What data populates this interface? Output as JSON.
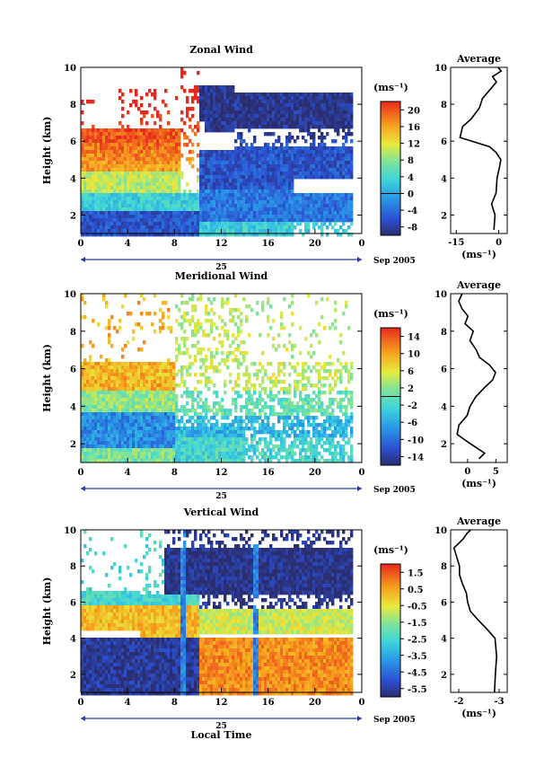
{
  "figure": {
    "xlabel": "Local Time",
    "date_label": "25",
    "month_label": "Sep 2005",
    "average_title": "Average",
    "unit": "(ms⁻¹)"
  },
  "chart_data": [
    {
      "type": "heatmap",
      "title": "Zonal Wind",
      "xlabel": "Local Time",
      "ylabel": "Height (km)",
      "xlim": [
        0,
        24
      ],
      "ylim": [
        1,
        10
      ],
      "xticks": [
        "0",
        "4",
        "8",
        "12",
        "16",
        "20",
        "0"
      ],
      "yticks": [
        "2",
        "4",
        "6",
        "8",
        "10"
      ],
      "colorbar": {
        "unit": "(ms⁻¹)",
        "ticks": [
          "20",
          "16",
          "12",
          "8",
          "4",
          "0",
          "-4",
          "-8"
        ],
        "min": -10,
        "max": 22
      },
      "avg": {
        "title": "Average",
        "xlabel": "(ms⁻¹)",
        "xticks": [
          "-15",
          "0"
        ],
        "xlim": [
          -17,
          3
        ],
        "yticks": [
          "2",
          "4",
          "6",
          "8",
          "10"
        ]
      }
    },
    {
      "type": "heatmap",
      "title": "Meridional Wind",
      "xlabel": "Local Time",
      "ylabel": "Height (km)",
      "xlim": [
        0,
        24
      ],
      "ylim": [
        1,
        10
      ],
      "xticks": [
        "0",
        "4",
        "8",
        "12",
        "16",
        "20",
        "0"
      ],
      "yticks": [
        "2",
        "4",
        "6",
        "8",
        "10"
      ],
      "colorbar": {
        "unit": "(ms⁻¹)",
        "ticks": [
          "14",
          "10",
          "6",
          "2",
          "-2",
          "-6",
          "-10",
          "-14"
        ],
        "min": -16,
        "max": 16
      },
      "avg": {
        "title": "Average",
        "xlabel": "(ms⁻¹)",
        "xticks": [
          "0",
          "5"
        ],
        "xlim": [
          -3,
          7
        ],
        "yticks": [
          "2",
          "4",
          "6",
          "8",
          "10"
        ]
      }
    },
    {
      "type": "heatmap",
      "title": "Vertical Wind",
      "xlabel": "Local Time",
      "ylabel": "Height (km)",
      "xlim": [
        0,
        24
      ],
      "ylim": [
        1,
        10
      ],
      "xticks": [
        "0",
        "4",
        "8",
        "12",
        "16",
        "20",
        "0"
      ],
      "yticks": [
        "2",
        "4",
        "6",
        "8",
        "10"
      ],
      "colorbar": {
        "unit": "(ms⁻¹)",
        "ticks": [
          "1.5",
          "0.5",
          "-0.5",
          "-1.5",
          "-2.5",
          "-3.5",
          "-4.5",
          "-5.5"
        ],
        "min": -6,
        "max": 2
      },
      "avg": {
        "title": "Average",
        "xlabel": "(ms⁻¹)",
        "xticks": [
          "-2",
          "-3"
        ],
        "xlim": [
          -1.8,
          -3.2
        ],
        "yticks": [
          "2",
          "4",
          "6",
          "8",
          "10"
        ]
      }
    }
  ]
}
